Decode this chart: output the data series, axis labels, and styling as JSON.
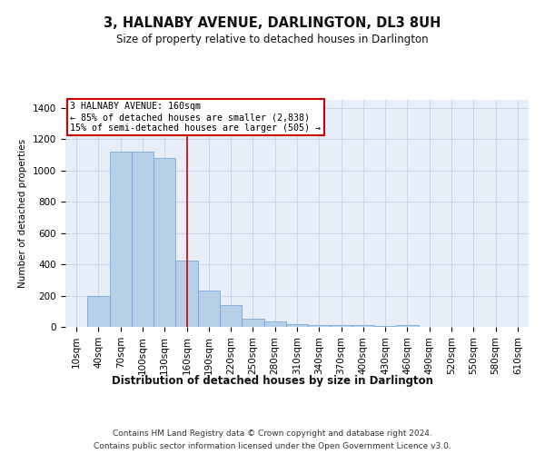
{
  "title": "3, HALNABY AVENUE, DARLINGTON, DL3 8UH",
  "subtitle": "Size of property relative to detached houses in Darlington",
  "xlabel": "Distribution of detached houses by size in Darlington",
  "ylabel": "Number of detached properties",
  "categories": [
    "10sqm",
    "40sqm",
    "70sqm",
    "100sqm",
    "130sqm",
    "160sqm",
    "190sqm",
    "220sqm",
    "250sqm",
    "280sqm",
    "310sqm",
    "340sqm",
    "370sqm",
    "400sqm",
    "430sqm",
    "460sqm",
    "490sqm",
    "520sqm",
    "550sqm",
    "580sqm",
    "610sqm"
  ],
  "values": [
    0,
    200,
    1120,
    1120,
    1080,
    425,
    230,
    140,
    55,
    35,
    20,
    10,
    10,
    10,
    5,
    10,
    0,
    0,
    0,
    0,
    0
  ],
  "bar_color": "#b8cfe8",
  "bar_edge_color": "#6a9fd8",
  "property_line_index": 5,
  "property_line_label": "3 HALNABY AVENUE: 160sqm",
  "annotation_smaller": "← 85% of detached houses are smaller (2,838)",
  "annotation_larger": "15% of semi-detached houses are larger (505) →",
  "annotation_box_facecolor": "#ffffff",
  "annotation_box_edgecolor": "#cc0000",
  "ylim": [
    0,
    1450
  ],
  "yticks": [
    0,
    200,
    400,
    600,
    800,
    1000,
    1200,
    1400
  ],
  "grid_color": "#c8d4e8",
  "background_color": "#e8eef8",
  "red_line_color": "#cc0000",
  "footer_line1": "Contains HM Land Registry data © Crown copyright and database right 2024.",
  "footer_line2": "Contains public sector information licensed under the Open Government Licence v3.0."
}
